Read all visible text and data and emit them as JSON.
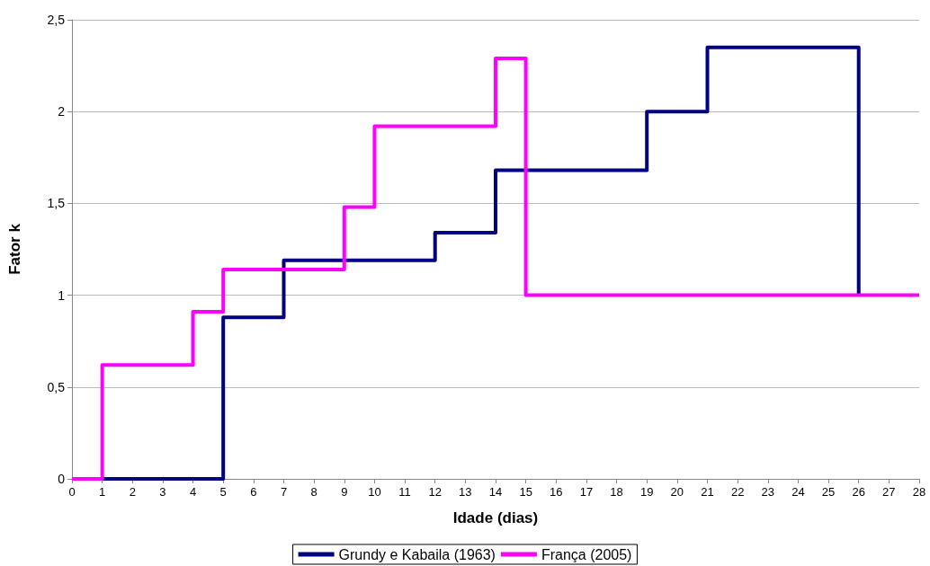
{
  "chart_data": {
    "type": "step",
    "xlabel": "Idade (dias)",
    "ylabel": "Fator k",
    "series": [
      {
        "name": "Grundy e Kabaila (1963)",
        "color": "#000080",
        "x": [
          0,
          5,
          7,
          12,
          14,
          19,
          21,
          26
        ],
        "values": [
          0,
          0.88,
          1.19,
          1.34,
          1.68,
          2.0,
          2.35,
          1.0
        ]
      },
      {
        "name": "França (2005)",
        "color": "#ff00ff",
        "x": [
          0,
          1,
          4,
          5,
          9,
          10,
          14,
          15,
          28
        ],
        "values": [
          0,
          0.62,
          0.91,
          1.14,
          1.48,
          1.92,
          2.29,
          1.0,
          1.0
        ]
      }
    ],
    "xlim": [
      0,
      28
    ],
    "xticks": [
      0,
      1,
      2,
      3,
      4,
      5,
      6,
      7,
      8,
      9,
      10,
      11,
      12,
      13,
      14,
      15,
      16,
      17,
      18,
      19,
      20,
      21,
      22,
      23,
      24,
      25,
      26,
      27,
      28
    ],
    "ylim": [
      0,
      2.5
    ],
    "yticks": [
      0,
      {
        "value": 0.5,
        "label": "0,5"
      },
      1,
      {
        "value": 1.5,
        "label": "1,5"
      },
      2,
      {
        "value": 2.5,
        "label": "2,5"
      }
    ],
    "grid": "y",
    "legend": "bottom",
    "marker": "none",
    "line_style": "solid"
  }
}
